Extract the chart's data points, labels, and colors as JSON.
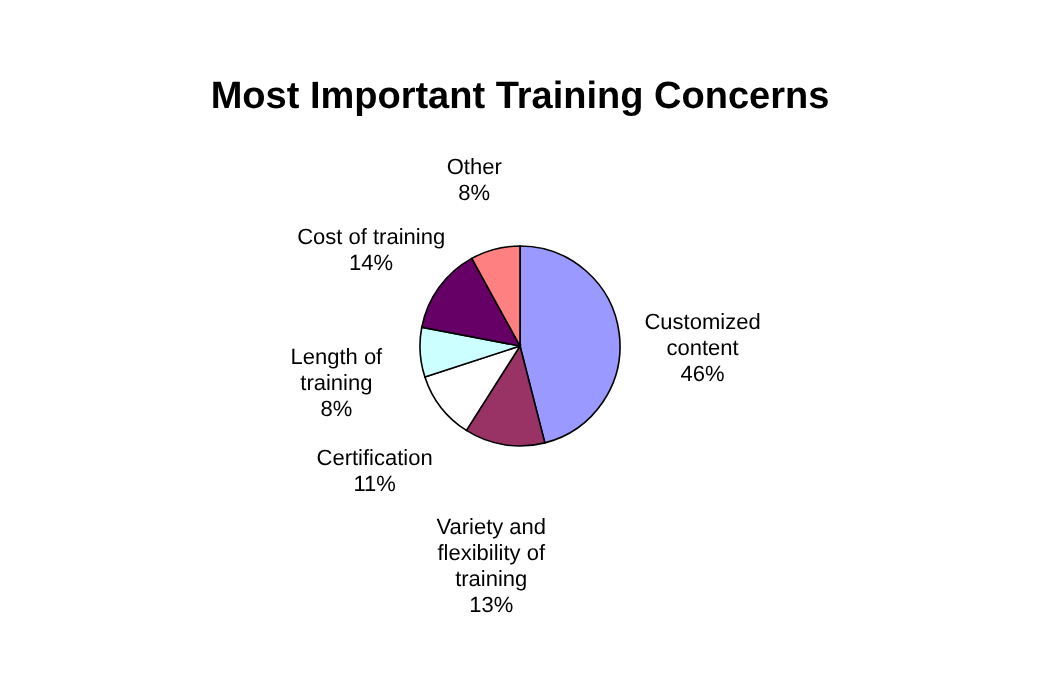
{
  "chart_data": {
    "type": "pie",
    "title": "Most Important Training Concerns",
    "categories": [
      "Customized content",
      "Variety and flexibility of training",
      "Certification",
      "Length of training",
      "Cost of training",
      "Other"
    ],
    "values": [
      46,
      13,
      11,
      8,
      14,
      8
    ],
    "colors": [
      "#9999ff",
      "#993366",
      "#ffffff",
      "#ccffff",
      "#660066",
      "#ff8080"
    ],
    "value_labels": [
      "46%",
      "13%",
      "11%",
      "8%",
      "14%",
      "8%"
    ],
    "legend": false
  }
}
